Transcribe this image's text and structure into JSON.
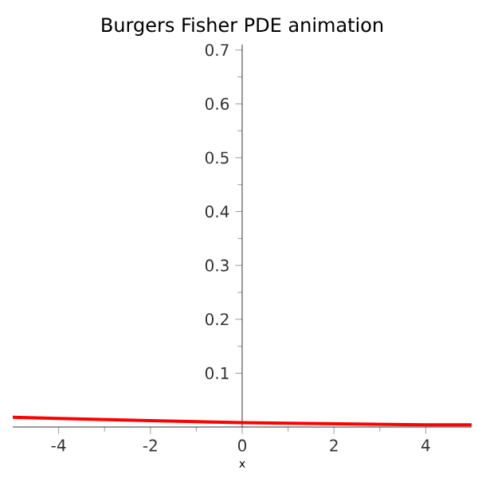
{
  "chart_data": {
    "type": "line",
    "title": "Burgers Fisher PDE  animation",
    "xlabel": "$x$",
    "x": [
      -5,
      -4,
      -3,
      -2,
      -1,
      0,
      1,
      2,
      3,
      4,
      5
    ],
    "series": [
      {
        "color": "#ff0000",
        "values": [
          0.018,
          0.016,
          0.014,
          0.012,
          0.01,
          0.008,
          0.007,
          0.006,
          0.005,
          0.004,
          0.004
        ]
      }
    ],
    "xlim": [
      -5,
      5
    ],
    "ylim": [
      0,
      0.71
    ],
    "xticks": [
      -4,
      -2,
      0,
      2,
      4
    ],
    "yticks": [
      0.1,
      0.2,
      0.3,
      0.4,
      0.5,
      0.6,
      0.7
    ],
    "marker": "none",
    "line_style": "solid"
  }
}
